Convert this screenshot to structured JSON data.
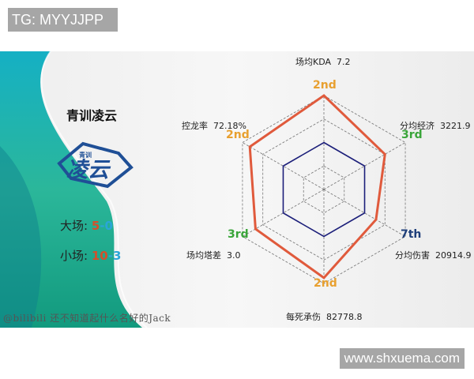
{
  "top_label": "TG: MYYJJPP",
  "bottom_label": "www.shxuema.com",
  "team": {
    "name": "青训凌云",
    "logo_text": "凌云",
    "logo_subtext": "青训"
  },
  "records": [
    {
      "label": "大场:",
      "wins": "5",
      "sep": "-",
      "losses": "0"
    },
    {
      "label": "小场:",
      "wins": "10",
      "sep": "-",
      "losses": "3"
    }
  ],
  "watermark": "@bilibili 还不知道起什么名好的Jack",
  "colors": {
    "team_line": "#e05a3c",
    "average_line": "#1c1f7a",
    "rank_2nd": "#e8a030",
    "rank_3rd": "#3aa53a",
    "rank_7th": "#1f3f7a",
    "win": "#d4502a",
    "loss": "#2aa6d8"
  },
  "chart_data": {
    "type": "radar",
    "grid": true,
    "rings": 4,
    "axes": [
      {
        "label": "场均KDA",
        "value": "7.2",
        "rank": "2nd",
        "score": 1.0
      },
      {
        "label": "分均经济",
        "value": "3221.9",
        "rank": "3rd",
        "score": 0.75
      },
      {
        "label": "分均伤害",
        "value": "20914.9",
        "rank": "7th",
        "score": 0.64
      },
      {
        "label": "每死承伤",
        "value": "82778.8",
        "rank": "2nd",
        "score": 0.94
      },
      {
        "label": "场均塔差",
        "value": "3.0",
        "rank": "3rd",
        "score": 0.84
      },
      {
        "label": "控龙率",
        "value": "72.18%",
        "rank": "2nd",
        "score": 0.91
      }
    ],
    "average_score": 0.5
  }
}
